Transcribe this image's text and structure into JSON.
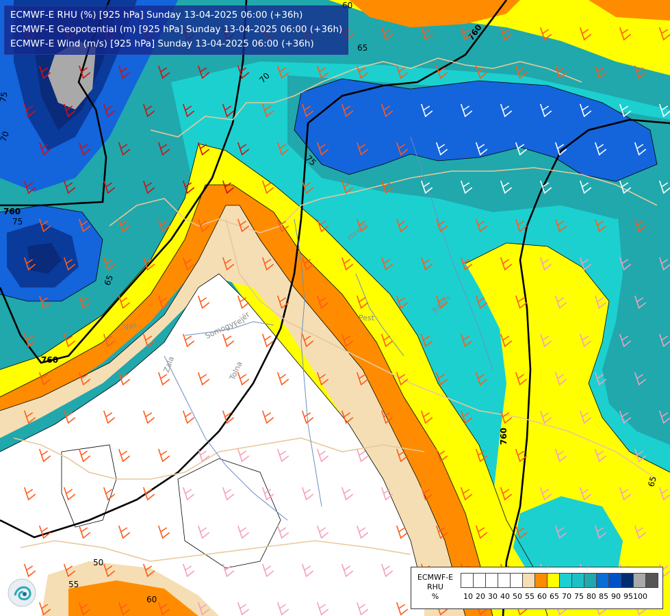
{
  "titles": [
    "ECMWF-E RHU (%) [925 hPa] Sunday 13-04-2025 06:00 (+36h)",
    "ECMWF-E Geopotential (m) [925 hPa] Sunday 13-04-2025 06:00 (+36h)",
    "ECMWF-E Wind (m/s) [925 hPa] Sunday 13-04-2025 06:00 (+36h)"
  ],
  "legend": {
    "label_lines": [
      "ECMWF-E",
      "RHU",
      "%"
    ],
    "ticks": [
      "10",
      "20",
      "30",
      "40",
      "50",
      "55",
      "60",
      "65",
      "70",
      "75",
      "80",
      "85",
      "90",
      "95",
      "100"
    ],
    "colors": [
      "#ffffff",
      "#ffffff",
      "#ffffff",
      "#ffffff",
      "#ffffff",
      "#f5deb3",
      "#ff8c00",
      "#ffff00",
      "#1cd0d0",
      "#1cc0c4",
      "#20a8ac",
      "#0a6ed8",
      "#0050c8",
      "#002c70",
      "#a9a9a9",
      "#555555"
    ]
  },
  "map_labels": {
    "geopotential": [
      "760",
      "760",
      "760",
      "760"
    ],
    "rhu_contours": [
      "50",
      "55",
      "60",
      "60",
      "65",
      "65",
      "65",
      "70",
      "70",
      "75",
      "75",
      "75"
    ],
    "regions": [
      "Vas",
      "Somogy",
      "Fejér",
      "Zala",
      "Tolna",
      "Pest",
      "Heves",
      "Békés"
    ]
  },
  "colors": {
    "white_zone": "#ffffff",
    "tan": "#f5deb3",
    "orange": "#ff8c00",
    "yellow": "#ffff00",
    "cyan": "#1cd0d0",
    "teal": "#20a8ac",
    "blue": "#1464dc",
    "navy": "#0a2a7a",
    "grey": "#a9a9a9",
    "border": "#e8c89a",
    "river": "#6a8fc0"
  },
  "icons": [
    "wind-barb-icon",
    "logo-icon"
  ]
}
